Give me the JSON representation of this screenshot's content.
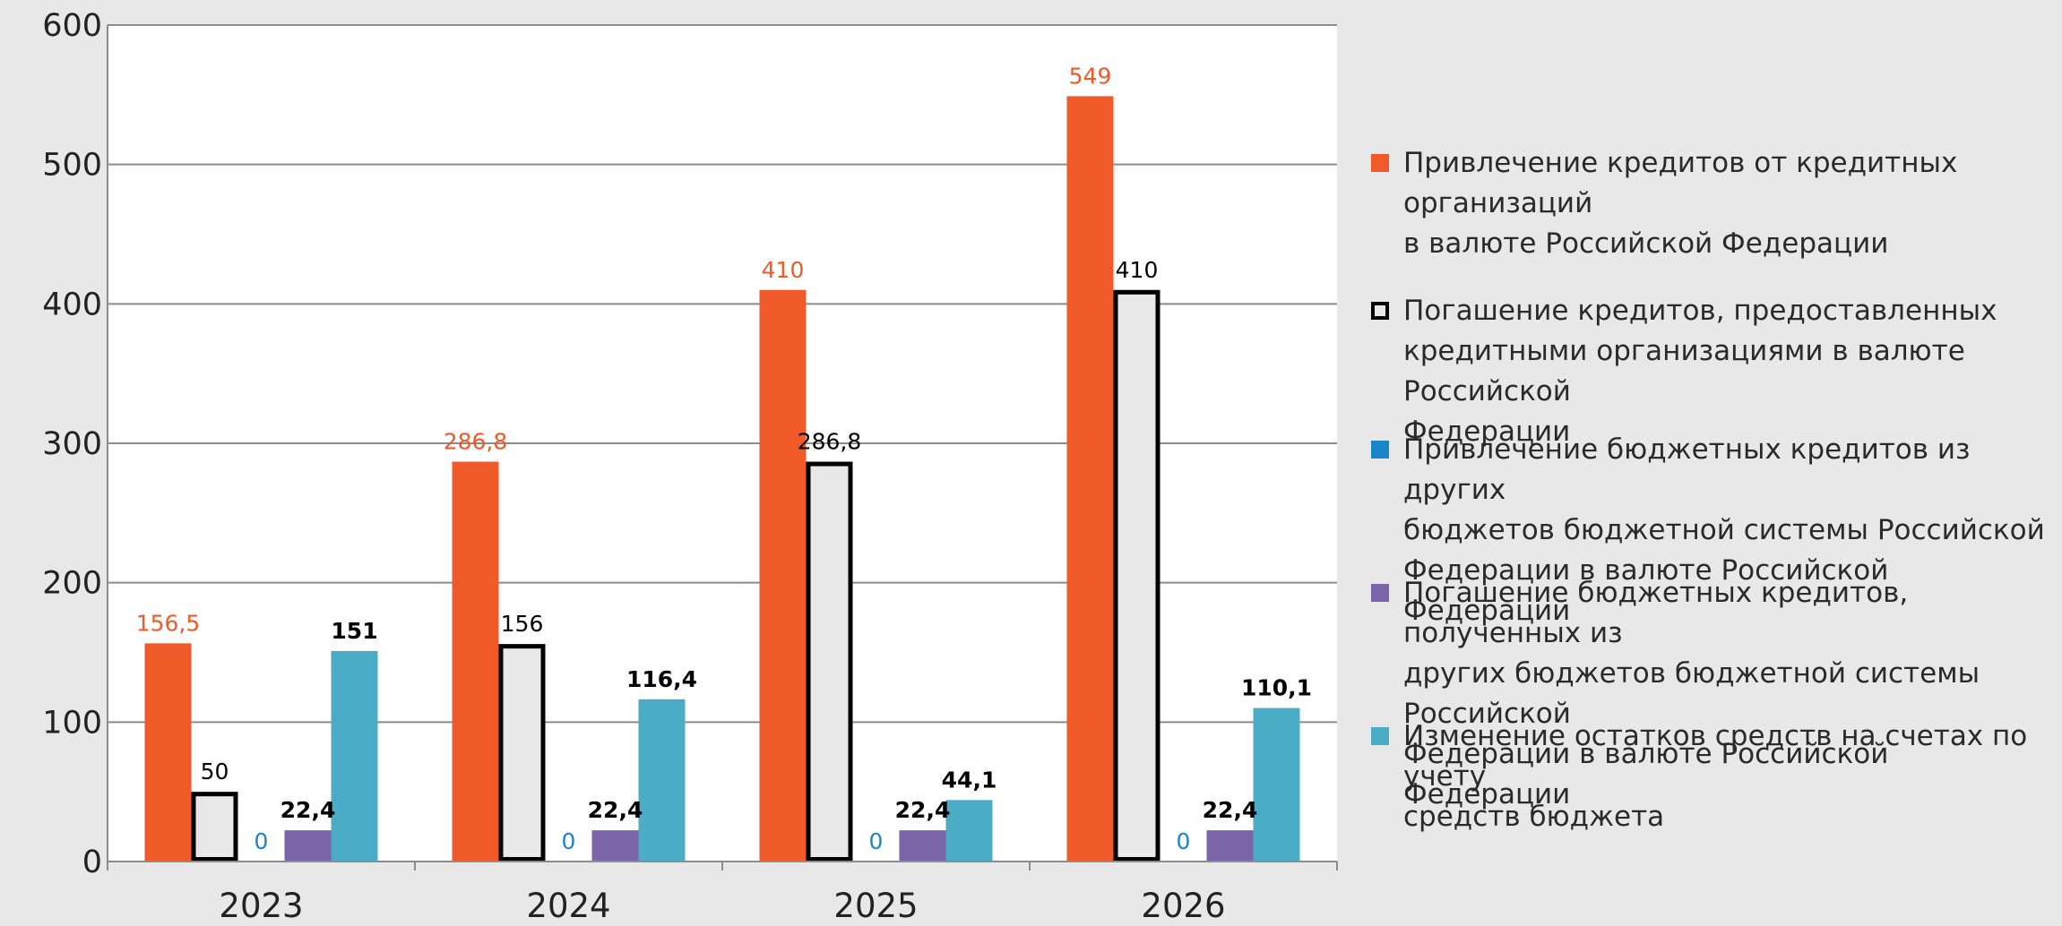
{
  "chart_data": {
    "type": "bar",
    "categories": [
      "2023",
      "2024",
      "2025",
      "2026"
    ],
    "ylim": [
      0,
      600
    ],
    "yticks": [
      0,
      100,
      200,
      300,
      400,
      500,
      600
    ],
    "grid": true,
    "legend_position": "right",
    "series": [
      {
        "name": "Привлечение кредитов от кредитных организаций в валюте Российской Федерации",
        "values": [
          156.5,
          286.8,
          410,
          549
        ],
        "labels": [
          "156,5",
          "286,8",
          "410",
          "549"
        ],
        "color": "#f05a28",
        "border": "none",
        "label_color": "#f05a28",
        "label_bold": false
      },
      {
        "name": "Погашение кредитов, предоставленных кредитными организациями в валюте Российской Федерации",
        "values": [
          50,
          156,
          286.8,
          410
        ],
        "labels": [
          "50",
          "156",
          "286,8",
          "410"
        ],
        "color": "#e8e8e8",
        "border": "#000000",
        "label_color": "#000000",
        "label_bold": false
      },
      {
        "name": "Привлечение бюджетных кредитов из других бюджетов бюджетной системы Российской Федерации в валюте Российской Федерации",
        "values": [
          0,
          0,
          0,
          0
        ],
        "labels": [
          "0",
          "0",
          "0",
          "0"
        ],
        "color": "#1a85c8",
        "border": "none",
        "label_color": "#1a85c8",
        "label_bold": false
      },
      {
        "name": "Погашение бюджетных кредитов, полученных из других бюджетов бюджетной системы Российской Федерации в валюте Российской Федерации",
        "values": [
          22.4,
          22.4,
          22.4,
          22.4
        ],
        "labels": [
          "22,4",
          "22,4",
          "22,4",
          "22,4"
        ],
        "color": "#7b64a8",
        "border": "none",
        "label_color": "#000000",
        "label_bold": true
      },
      {
        "name": "Изменение остатков средств на счетах по учету средств бюджета",
        "values": [
          151,
          116.4,
          44.1,
          110.1
        ],
        "labels": [
          "151",
          "116,4",
          "44,1",
          "110,1"
        ],
        "color": "#4bacc6",
        "border": "none",
        "label_color": "#000000",
        "label_bold": true
      }
    ]
  },
  "legend_lines": [
    [
      "Привлечение кредитов от кредитных организаций",
      "в валюте Российской Федерации"
    ],
    [
      "Погашение кредитов, предоставленных",
      "кредитными организациями в валюте Российской",
      "Федерации"
    ],
    [
      "Привлечение бюджетных кредитов из других",
      "бюджетов бюджетной системы Российской",
      "Федерации в валюте Российской Федерации"
    ],
    [
      "Погашение бюджетных кредитов, полученных из",
      "других бюджетов бюджетной системы Российской",
      "Федерации в валюте Российской Федерации"
    ],
    [
      "Изменение остатков средств на счетах по учету",
      "средств бюджета"
    ]
  ]
}
